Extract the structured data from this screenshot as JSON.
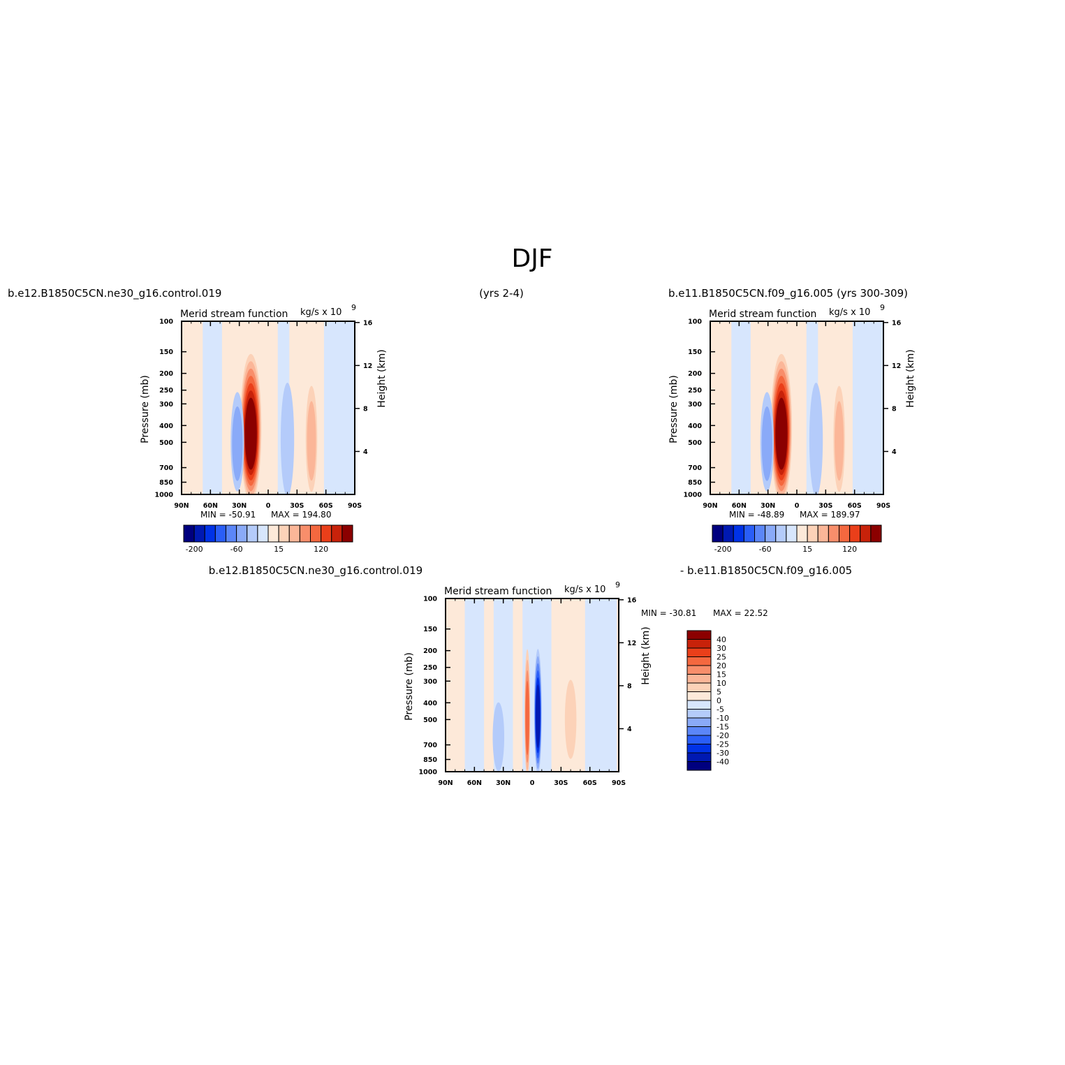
{
  "page": {
    "title": "DJF",
    "case1_label": "b.e12.B1850C5CN.ne30_g16.control.019",
    "case1_years": "(yrs 2-4)",
    "case2_label": "b.e11.B1850C5CN.f09_g16.005 (yrs 300-309)",
    "diff_label_a": "b.e12.B1850C5CN.ne30_g16.control.019",
    "diff_label_b": "- b.e11.B1850C5CN.f09_g16.005"
  },
  "colors": {
    "scale": [
      "#00007f",
      "#0019b2",
      "#0032e6",
      "#2a5ef7",
      "#5b86f8",
      "#8aaaf8",
      "#b4cbfa",
      "#d7e6fd",
      "#fde9d9",
      "#fcd2b8",
      "#fbb698",
      "#f88e6b",
      "#f4683f",
      "#ea3f1a",
      "#c8220a",
      "#8b0000"
    ]
  },
  "chart_data": [
    {
      "type": "contour",
      "title": "Merid stream function",
      "units": "kg/s x 10",
      "units_exp": "9",
      "ylabel": "Pressure (mb)",
      "ylabel_right": "Height (km)",
      "x_ticks": [
        "90N",
        "60N",
        "30N",
        "0",
        "30S",
        "60S",
        "90S"
      ],
      "y_ticks": [
        100,
        150,
        200,
        250,
        300,
        400,
        500,
        700,
        850,
        1000
      ],
      "y_right_ticks": [
        16,
        12,
        8,
        4
      ],
      "min_text": "MIN = -50.91",
      "max_text": "MAX = 194.80",
      "colorbar_labels": [
        "-200",
        "-60",
        "15",
        "120"
      ],
      "cells": [
        {
          "lat": 18,
          "top": 140,
          "bottom": 1000,
          "halfwidth": 11,
          "value": 194.8
        },
        {
          "lat": 32,
          "top": 240,
          "bottom": 900,
          "halfwidth": 7,
          "value": -50.91
        },
        {
          "lat": -20,
          "top": 210,
          "bottom": 950,
          "halfwidth": 7,
          "value": -40
        },
        {
          "lat": -45,
          "top": 220,
          "bottom": 900,
          "halfwidth": 6,
          "value": 25
        }
      ]
    },
    {
      "type": "contour",
      "title": "Merid stream function",
      "units": "kg/s x 10",
      "units_exp": "9",
      "ylabel": "Pressure (mb)",
      "ylabel_right": "Height (km)",
      "x_ticks": [
        "90N",
        "60N",
        "30N",
        "0",
        "30S",
        "60S",
        "90S"
      ],
      "y_ticks": [
        100,
        150,
        200,
        250,
        300,
        400,
        500,
        700,
        850,
        1000
      ],
      "y_right_ticks": [
        16,
        12,
        8,
        4
      ],
      "min_text": "MIN = -48.89",
      "max_text": "MAX = 189.97",
      "colorbar_labels": [
        "-200",
        "-60",
        "15",
        "120"
      ],
      "cells": [
        {
          "lat": 16,
          "top": 140,
          "bottom": 1000,
          "halfwidth": 11,
          "value": 189.97
        },
        {
          "lat": 31,
          "top": 240,
          "bottom": 900,
          "halfwidth": 7,
          "value": -48.89
        },
        {
          "lat": -20,
          "top": 210,
          "bottom": 950,
          "halfwidth": 7,
          "value": -40
        },
        {
          "lat": -44,
          "top": 220,
          "bottom": 900,
          "halfwidth": 6,
          "value": 25
        }
      ]
    },
    {
      "type": "contour",
      "title": "Merid stream function",
      "units": "kg/s x 10",
      "units_exp": "9",
      "ylabel": "Pressure (mb)",
      "ylabel_right": "Height (km)",
      "x_ticks": [
        "90N",
        "60N",
        "30N",
        "0",
        "30S",
        "60S",
        "90S"
      ],
      "y_ticks": [
        100,
        150,
        200,
        250,
        300,
        400,
        500,
        700,
        850,
        1000
      ],
      "y_right_ticks": [
        16,
        12,
        8,
        4
      ],
      "min_text": "MIN = -30.81",
      "max_text": "MAX = 22.52",
      "colorbar_labels": [
        "40",
        "30",
        "25",
        "20",
        "15",
        "10",
        "5",
        "0",
        "-5",
        "-10",
        "-15",
        "-20",
        "-25",
        "-30",
        "-40"
      ],
      "cells": [
        {
          "lat": 5,
          "top": 180,
          "bottom": 1000,
          "halfwidth": 3,
          "value": 22.52
        },
        {
          "lat": -6,
          "top": 180,
          "bottom": 950,
          "halfwidth": 4,
          "value": -30.81
        },
        {
          "lat": 35,
          "top": 380,
          "bottom": 950,
          "halfwidth": 6,
          "value": -10
        },
        {
          "lat": -40,
          "top": 280,
          "bottom": 800,
          "halfwidth": 6,
          "value": 5
        },
        {
          "lat": -55,
          "top": 380,
          "bottom": 550,
          "halfwidth": 2,
          "value": -3
        }
      ]
    }
  ]
}
